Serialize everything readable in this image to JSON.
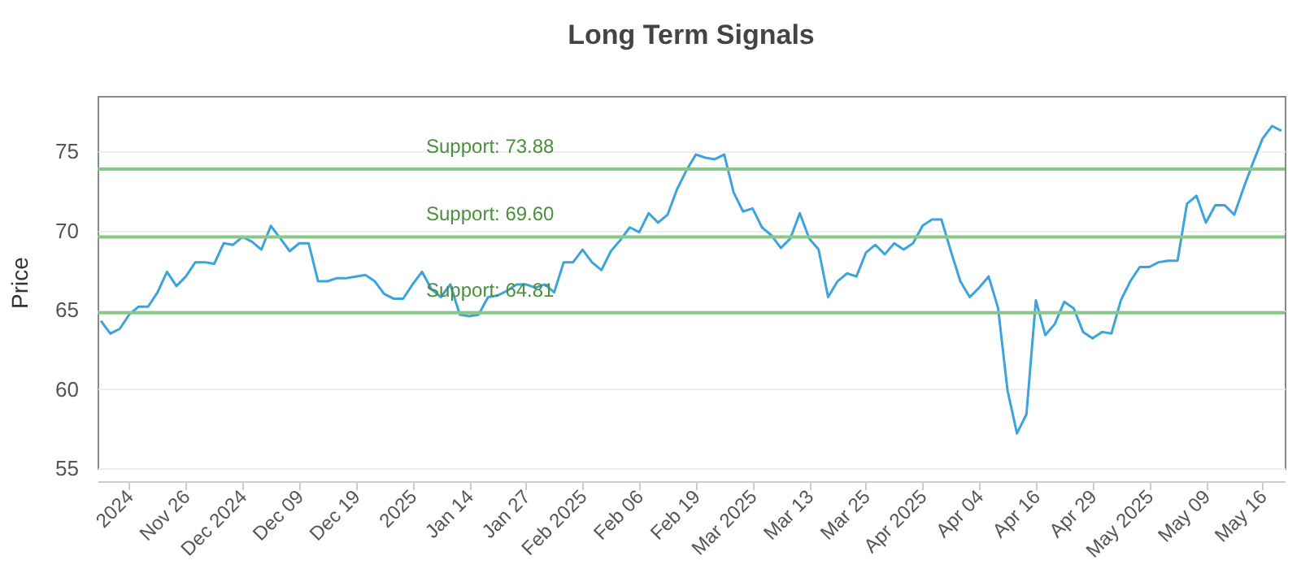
{
  "chart_data": {
    "type": "line",
    "title": "Long Term Signals",
    "ylabel": "Price",
    "categories": [
      null,
      null,
      null,
      "2024",
      null,
      null,
      null,
      null,
      null,
      "Nov 26",
      null,
      null,
      null,
      null,
      null,
      "Dec 2024",
      null,
      null,
      null,
      null,
      null,
      "Dec 09",
      null,
      null,
      null,
      null,
      null,
      "Dec 19",
      null,
      null,
      null,
      null,
      null,
      "2025",
      null,
      null,
      null,
      null,
      null,
      "Jan 14",
      null,
      null,
      null,
      null,
      null,
      "Jan 27",
      null,
      null,
      null,
      null,
      null,
      "Feb 2025",
      null,
      null,
      null,
      null,
      null,
      "Feb 06",
      null,
      null,
      null,
      null,
      null,
      "Feb 19",
      null,
      null,
      null,
      null,
      null,
      "Mar 2025",
      null,
      null,
      null,
      null,
      null,
      "Mar 13",
      null,
      null,
      null,
      null,
      null,
      "Mar 25",
      null,
      null,
      null,
      null,
      null,
      "Apr 2025",
      null,
      null,
      null,
      null,
      null,
      "Apr 04",
      null,
      null,
      null,
      null,
      null,
      "Apr 16",
      null,
      null,
      null,
      null,
      null,
      "Apr 29",
      null,
      null,
      null,
      null,
      null,
      "May 2025",
      null,
      null,
      null,
      null,
      null,
      "May 09",
      null,
      null,
      null,
      null,
      null,
      "May 16",
      null,
      null
    ],
    "series": [
      {
        "color": "#3ea3dc",
        "values": [
          64.3,
          63.5,
          63.8,
          64.7,
          65.2,
          65.2,
          66.1,
          67.4,
          66.5,
          67.1,
          68.0,
          68.0,
          67.9,
          69.2,
          69.1,
          69.6,
          69.3,
          68.8,
          70.3,
          69.5,
          68.7,
          69.2,
          69.2,
          66.8,
          66.8,
          67.0,
          67.0,
          67.1,
          67.2,
          66.8,
          66.0,
          65.7,
          65.7,
          66.6,
          67.4,
          66.3,
          65.8,
          66.6,
          64.7,
          64.6,
          64.7,
          65.8,
          65.9,
          66.2,
          66.6,
          66.6,
          66.4,
          66.6,
          66.1,
          68.0,
          68.0,
          68.8,
          68.0,
          67.5,
          68.7,
          69.4,
          70.2,
          69.9,
          71.1,
          70.5,
          71.0,
          72.6,
          73.8,
          74.8,
          74.6,
          74.5,
          74.8,
          72.4,
          71.2,
          71.4,
          70.2,
          69.7,
          68.9,
          69.5,
          71.1,
          69.5,
          68.8,
          65.8,
          66.8,
          67.3,
          67.1,
          68.6,
          69.1,
          68.5,
          69.2,
          68.8,
          69.2,
          70.3,
          70.7,
          70.7,
          68.7,
          66.8,
          65.8,
          66.4,
          67.1,
          65.1,
          59.9,
          57.2,
          58.4,
          65.6,
          63.4,
          64.1,
          65.5,
          65.1,
          63.6,
          63.2,
          63.6,
          63.5,
          65.6,
          66.8,
          67.7,
          67.7,
          68.0,
          68.1,
          68.1,
          71.7,
          72.2,
          70.5,
          71.6,
          71.6,
          71.0,
          72.7,
          74.3,
          75.8,
          76.6,
          76.3
        ]
      }
    ],
    "ylim": [
      55,
      78.5
    ],
    "yticks": [
      55,
      60,
      65,
      70,
      75
    ],
    "grid": "y",
    "ref_lines": [
      {
        "axis": "y",
        "value": 73.88,
        "label": "Support: 73.88",
        "color": "#88c988"
      },
      {
        "axis": "y",
        "value": 69.6,
        "label": "Support: 69.60",
        "color": "#88c988"
      },
      {
        "axis": "y",
        "value": 64.81,
        "label": "Support: 64.81",
        "color": "#88c988"
      }
    ]
  }
}
